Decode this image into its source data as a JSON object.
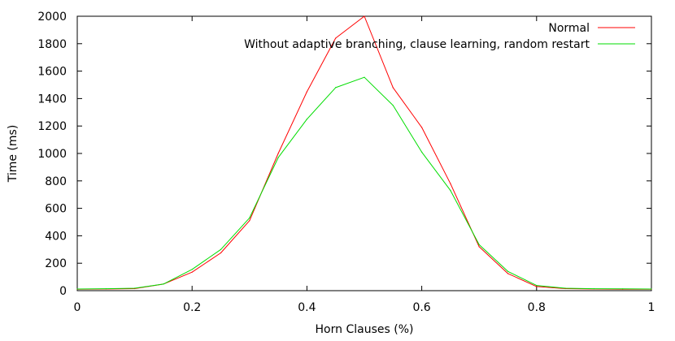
{
  "chart_data": {
    "type": "line",
    "title": "",
    "xlabel": "Horn Clauses (%)",
    "ylabel": "Time (ms)",
    "xlim": [
      0,
      1
    ],
    "ylim": [
      0,
      2000
    ],
    "x_ticks": [
      0,
      0.2,
      0.4,
      0.6,
      0.8,
      1
    ],
    "x_tick_labels": [
      "0",
      "0.2",
      "0.4",
      "0.6",
      "0.8",
      "1"
    ],
    "y_ticks": [
      0,
      200,
      400,
      600,
      800,
      1000,
      1200,
      1400,
      1600,
      1800,
      2000
    ],
    "y_tick_labels": [
      "0",
      "200",
      "400",
      "600",
      "800",
      "1000",
      "1200",
      "1400",
      "1600",
      "1800",
      "2000"
    ],
    "grid": false,
    "legend_position": "top-right",
    "x": [
      0,
      0.05,
      0.1,
      0.15,
      0.2,
      0.25,
      0.3,
      0.35,
      0.4,
      0.45,
      0.5,
      0.55,
      0.6,
      0.65,
      0.7,
      0.75,
      0.8,
      0.85,
      0.9,
      0.95,
      1.0
    ],
    "series": [
      {
        "name": "Normal",
        "color": "#ff0000",
        "values": [
          10,
          12,
          15,
          48,
          135,
          275,
          510,
          1000,
          1450,
          1840,
          2000,
          1480,
          1190,
          780,
          320,
          125,
          30,
          15,
          12,
          10,
          10
        ]
      },
      {
        "name": "Without adaptive branching, clause learning, random restart",
        "color": "#00dd00",
        "values": [
          12,
          14,
          18,
          48,
          155,
          300,
          530,
          970,
          1250,
          1480,
          1555,
          1350,
          1010,
          730,
          335,
          140,
          38,
          18,
          14,
          13,
          12
        ]
      }
    ]
  }
}
